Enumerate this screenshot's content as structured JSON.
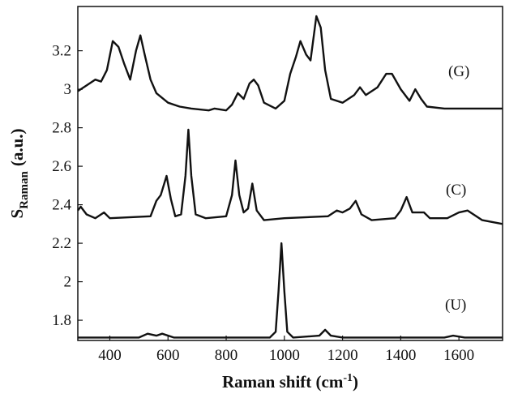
{
  "chart_data": {
    "type": "line",
    "xlabel": {
      "main": "Raman shift (cm",
      "sup": "-1",
      "end": ")"
    },
    "ylabel": {
      "main": "S",
      "sub": "Raman",
      "unit": "(a.u.)"
    },
    "xlim": [
      290,
      1750
    ],
    "ylim": [
      1.695,
      3.43
    ],
    "xticks": [
      400,
      600,
      800,
      1000,
      1200,
      1400,
      1600
    ],
    "yticks": [
      1.8,
      2,
      2.2,
      2.4,
      2.6,
      2.8,
      3,
      3.2
    ],
    "series": [
      {
        "name": "(G)",
        "color": "#111111",
        "x": [
          290,
          320,
          350,
          370,
          390,
          410,
          430,
          450,
          470,
          490,
          505,
          520,
          540,
          560,
          600,
          640,
          680,
          740,
          760,
          800,
          820,
          840,
          860,
          880,
          895,
          910,
          930,
          970,
          1000,
          1020,
          1040,
          1055,
          1075,
          1090,
          1110,
          1125,
          1140,
          1160,
          1200,
          1240,
          1260,
          1280,
          1320,
          1350,
          1370,
          1400,
          1430,
          1450,
          1470,
          1490,
          1550,
          1750
        ],
        "values": [
          2.99,
          3.02,
          3.05,
          3.04,
          3.1,
          3.25,
          3.22,
          3.13,
          3.05,
          3.2,
          3.28,
          3.18,
          3.05,
          2.98,
          2.93,
          2.91,
          2.9,
          2.89,
          2.9,
          2.89,
          2.92,
          2.98,
          2.95,
          3.03,
          3.05,
          3.02,
          2.93,
          2.9,
          2.94,
          3.08,
          3.17,
          3.25,
          3.18,
          3.15,
          3.38,
          3.32,
          3.1,
          2.95,
          2.93,
          2.97,
          3.01,
          2.97,
          3.01,
          3.08,
          3.08,
          3.0,
          2.94,
          3.0,
          2.95,
          2.91,
          2.9,
          2.9
        ]
      },
      {
        "name": "(C)",
        "color": "#111111",
        "x": [
          290,
          300,
          320,
          350,
          380,
          400,
          540,
          560,
          575,
          595,
          610,
          625,
          645,
          660,
          670,
          680,
          695,
          730,
          800,
          820,
          832,
          845,
          860,
          875,
          890,
          905,
          930,
          1000,
          1150,
          1180,
          1200,
          1225,
          1245,
          1265,
          1300,
          1380,
          1400,
          1420,
          1440,
          1480,
          1500,
          1560,
          1600,
          1630,
          1680,
          1750
        ],
        "values": [
          2.37,
          2.39,
          2.35,
          2.33,
          2.36,
          2.33,
          2.34,
          2.42,
          2.45,
          2.55,
          2.43,
          2.34,
          2.35,
          2.55,
          2.79,
          2.55,
          2.35,
          2.33,
          2.34,
          2.45,
          2.63,
          2.45,
          2.36,
          2.38,
          2.51,
          2.37,
          2.32,
          2.33,
          2.34,
          2.37,
          2.36,
          2.38,
          2.42,
          2.35,
          2.32,
          2.33,
          2.37,
          2.44,
          2.36,
          2.36,
          2.33,
          2.33,
          2.36,
          2.37,
          2.32,
          2.3
        ]
      },
      {
        "name": "(U)",
        "color": "#111111",
        "x": [
          290,
          500,
          530,
          560,
          580,
          620,
          950,
          970,
          980,
          990,
          1000,
          1010,
          1030,
          1120,
          1140,
          1160,
          1200,
          1550,
          1580,
          1620,
          1750
        ],
        "values": [
          1.71,
          1.71,
          1.73,
          1.72,
          1.73,
          1.71,
          1.71,
          1.74,
          1.95,
          2.2,
          1.95,
          1.74,
          1.71,
          1.72,
          1.75,
          1.72,
          1.71,
          1.71,
          1.72,
          1.71,
          1.71
        ]
      }
    ]
  }
}
